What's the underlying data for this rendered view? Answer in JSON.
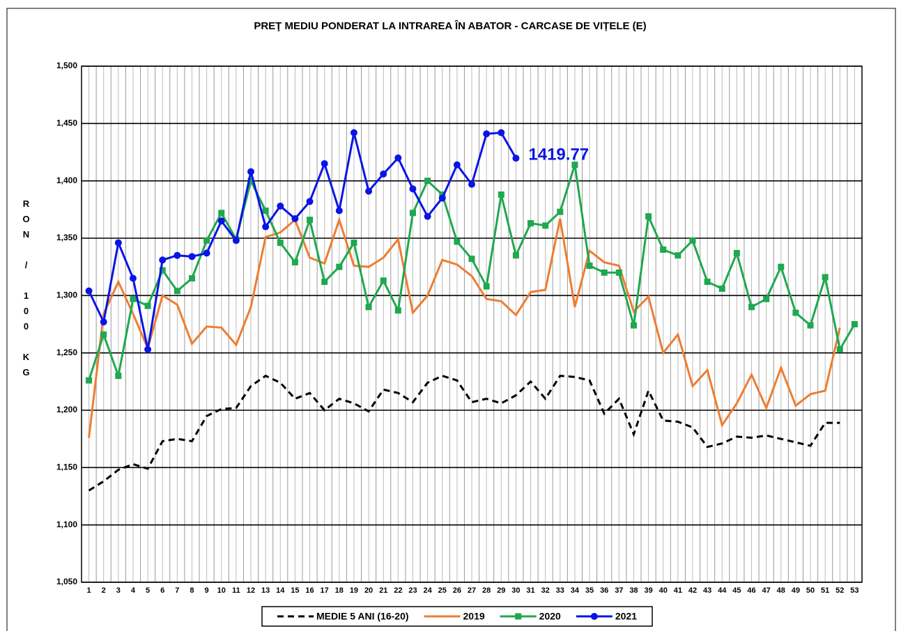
{
  "chart_data": {
    "type": "line",
    "title": "PREŢ MEDIU PONDERAT LA INTRAREA ÎN ABATOR - CARCASE DE VIȚELE (E)",
    "y_label": "RON / 100 KG",
    "annotation": "1419.77",
    "categories": [
      "1",
      "2",
      "3",
      "4",
      "5",
      "6",
      "7",
      "8",
      "9",
      "10",
      "11",
      "12",
      "13",
      "14",
      "15",
      "16",
      "17",
      "18",
      "19",
      "20",
      "21",
      "22",
      "23",
      "24",
      "25",
      "26",
      "27",
      "28",
      "29",
      "30",
      "31",
      "32",
      "33",
      "34",
      "35",
      "36",
      "37",
      "38",
      "39",
      "40",
      "41",
      "42",
      "43",
      "44",
      "45",
      "46",
      "47",
      "48",
      "49",
      "50",
      "51",
      "52",
      "53"
    ],
    "ylim": [
      1050,
      1500
    ],
    "yticks": [
      {
        "value": 1050,
        "label": "1,050"
      },
      {
        "value": 1100,
        "label": "1,100"
      },
      {
        "value": 1150,
        "label": "1,150"
      },
      {
        "value": 1200,
        "label": "1,200"
      },
      {
        "value": 1250,
        "label": "1,250"
      },
      {
        "value": 1300,
        "label": "1,300"
      },
      {
        "value": 1350,
        "label": "1,350"
      },
      {
        "value": 1400,
        "label": "1,400"
      },
      {
        "value": 1450,
        "label": "1,450"
      },
      {
        "value": 1500,
        "label": "1,500"
      }
    ],
    "grid": true,
    "legend": "bottom",
    "series": [
      {
        "name": "MEDIE 5 ANI (16-20)",
        "color": "#000000",
        "dash": true,
        "marker": "none",
        "values": [
          1130,
          1138,
          1148,
          1153,
          1149,
          1173,
          1175,
          1173,
          1195,
          1201,
          1202,
          1221,
          1230,
          1224,
          1210,
          1215,
          1200,
          1210,
          1206,
          1199,
          1218,
          1215,
          1207,
          1224,
          1230,
          1226,
          1207,
          1210,
          1206,
          1213,
          1225,
          1210,
          1230,
          1229,
          1226,
          1197,
          1210,
          1179,
          1217,
          1191,
          1190,
          1185,
          1168,
          1171,
          1177,
          1176,
          1178,
          1175,
          1172,
          1169,
          1189,
          1189,
          null
        ]
      },
      {
        "name": "2019",
        "color": "#ed7d31",
        "dash": false,
        "marker": "none",
        "values": [
          1176,
          1284,
          1312,
          1284,
          1254,
          1300,
          1292,
          1258,
          1273,
          1272,
          1257,
          1290,
          1351,
          1355,
          1366,
          1333,
          1328,
          1366,
          1326,
          1325,
          1333,
          1349,
          1285,
          1300,
          1331,
          1327,
          1317,
          1297,
          1295,
          1283,
          1303,
          1305,
          1367,
          1290,
          1339,
          1329,
          1326,
          1286,
          1299,
          1250,
          1266,
          1221,
          1235,
          1187,
          1206,
          1231,
          1202,
          1237,
          1204,
          1214,
          1217,
          1272,
          null
        ]
      },
      {
        "name": "2020",
        "color": "#1fa84f",
        "dash": false,
        "marker": "square",
        "values": [
          1226,
          1266,
          1230,
          1297,
          1291,
          1322,
          1304,
          1315,
          1348,
          1372,
          1349,
          1400,
          1374,
          1346,
          1329,
          1366,
          1312,
          1325,
          1346,
          1290,
          1313,
          1287,
          1372,
          1400,
          1388,
          1347,
          1332,
          1308,
          1388,
          1335,
          1363,
          1361,
          1373,
          1414,
          1326,
          1320,
          1320,
          1274,
          1369,
          1340,
          1335,
          1348,
          1312,
          1306,
          1337,
          1290,
          1297,
          1325,
          1285,
          1274,
          1316,
          1253,
          1275
        ]
      },
      {
        "name": "2021",
        "color": "#0a14e6",
        "dash": false,
        "marker": "circle",
        "values": [
          1304,
          1277,
          1346,
          1315,
          1253,
          1331,
          1335,
          1334,
          1337,
          1365,
          1348,
          1408,
          1360,
          1378,
          1367,
          1382,
          1415,
          1374,
          1442,
          1391,
          1406,
          1420,
          1393,
          1369,
          1385,
          1414,
          1397,
          1441,
          1442,
          1419.77,
          null,
          null,
          null,
          null,
          null,
          null,
          null,
          null,
          null,
          null,
          null,
          null,
          null,
          null,
          null,
          null,
          null,
          null,
          null,
          null,
          null,
          null,
          null
        ]
      }
    ]
  }
}
